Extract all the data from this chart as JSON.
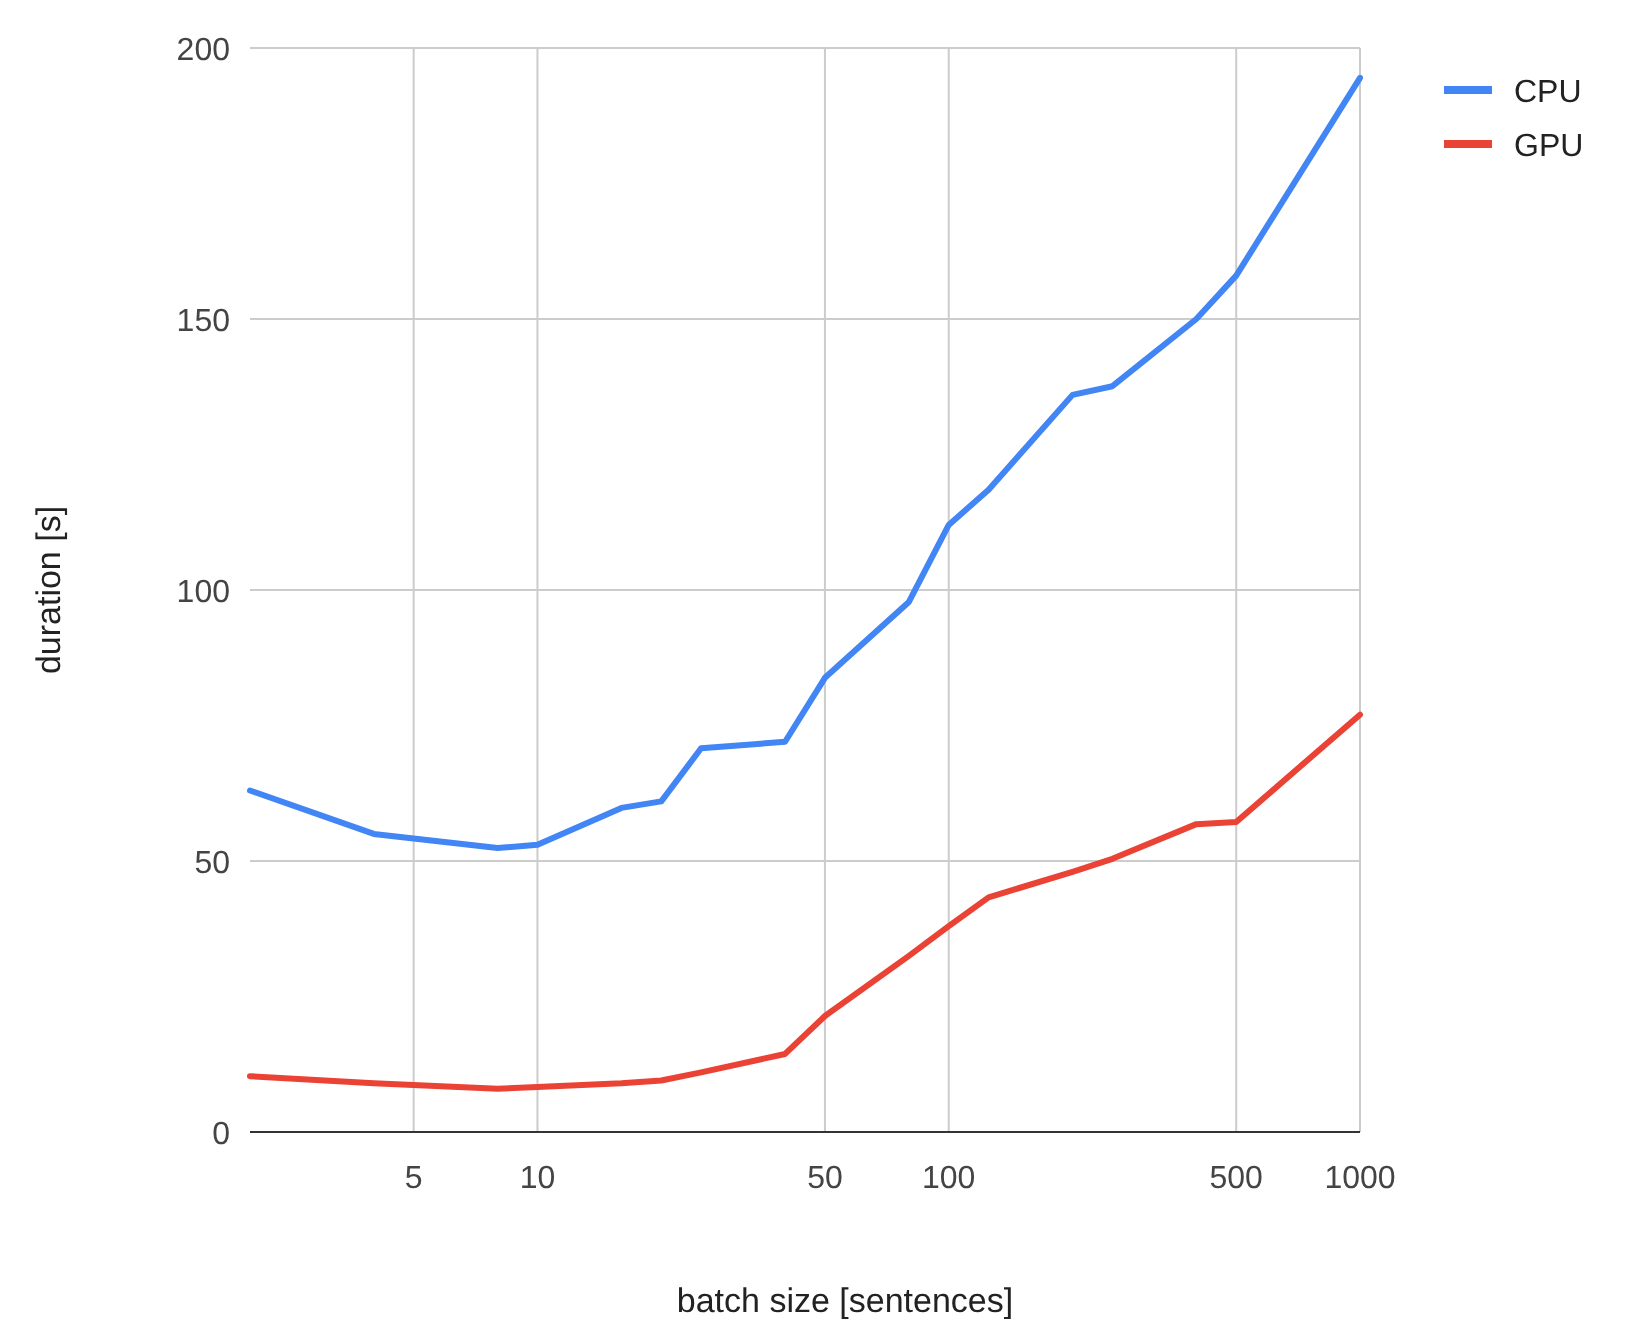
{
  "chart_data": {
    "type": "line",
    "xlabel": "batch size [sentences]",
    "ylabel": "duration [s]",
    "x": [
      2,
      4,
      8,
      10,
      16,
      20,
      25,
      40,
      50,
      80,
      100,
      125,
      200,
      250,
      400,
      500,
      1000
    ],
    "series": [
      {
        "name": "CPU",
        "color": "#4285f4",
        "values": [
          63,
          55,
          52.4,
          53,
          59.8,
          61,
          70.8,
          72,
          83.8,
          97.8,
          112,
          118.5,
          136,
          137.6,
          150,
          158,
          194.5
        ]
      },
      {
        "name": "GPU",
        "color": "#ea4335",
        "values": [
          10.3,
          9,
          8,
          8.3,
          9,
          9.5,
          11,
          14.4,
          21.4,
          32.5,
          38,
          43.3,
          48,
          50.4,
          56.8,
          57.2,
          77
        ]
      }
    ],
    "xlim": [
      2,
      1000
    ],
    "xticks": [
      5,
      10,
      50,
      100,
      500,
      1000
    ],
    "ylim": [
      0,
      200
    ],
    "yticks": [
      0,
      50,
      100,
      150,
      200
    ],
    "log": "x",
    "grid": true,
    "legend": "right",
    "marker": "none",
    "line_style": "solid"
  }
}
